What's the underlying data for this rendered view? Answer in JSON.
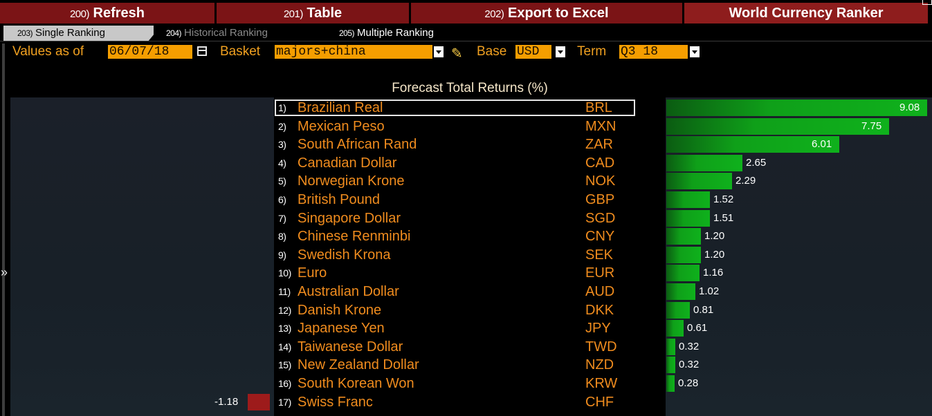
{
  "toolbar": {
    "refresh": {
      "num": "200)",
      "label": "Refresh"
    },
    "table": {
      "num": "201)",
      "label": "Table"
    },
    "export": {
      "num": "202)",
      "label": "Export to Excel"
    },
    "title": "World Currency Ranker"
  },
  "tabs": [
    {
      "num": "203)",
      "label": "Single Ranking"
    },
    {
      "num": "204)",
      "label": "Historical Ranking"
    },
    {
      "num": "205)",
      "label": "Multiple Ranking"
    }
  ],
  "controls": {
    "values_as_of_label": "Values as of",
    "date": "06/07/18",
    "basket_label": "Basket",
    "basket": "majors+china",
    "base_label": "Base",
    "base": "USD",
    "term_label": "Term",
    "term": "Q3 18"
  },
  "chart": {
    "title": "Forecast Total Returns (%)"
  },
  "colors": {
    "accent_orange": "#f59e00",
    "label_orange": "#f08c1e",
    "positive": "#0fb11c",
    "negative": "#9d1b1b",
    "toolbar_red": "#7b1416"
  },
  "chart_data": {
    "type": "bar",
    "title": "Forecast Total Returns (%)",
    "categories": [
      "Brazilian Real",
      "Mexican Peso",
      "South African Rand",
      "Canadian Dollar",
      "Norwegian Krone",
      "British Pound",
      "Singapore Dollar",
      "Chinese Renminbi",
      "Swedish Krona",
      "Euro",
      "Australian Dollar",
      "Danish Krone",
      "Japanese Yen",
      "Taiwanese Dollar",
      "New Zealand Dollar",
      "South Korean Won",
      "Swiss Franc"
    ],
    "rows": [
      {
        "rank": "1)",
        "name": "Brazilian Real",
        "code": "BRL",
        "value": 9.08,
        "label": "9.08"
      },
      {
        "rank": "2)",
        "name": "Mexican Peso",
        "code": "MXN",
        "value": 7.75,
        "label": "7.75"
      },
      {
        "rank": "3)",
        "name": "South African Rand",
        "code": "ZAR",
        "value": 6.01,
        "label": "6.01"
      },
      {
        "rank": "4)",
        "name": "Canadian Dollar",
        "code": "CAD",
        "value": 2.65,
        "label": "2.65"
      },
      {
        "rank": "5)",
        "name": "Norwegian Krone",
        "code": "NOK",
        "value": 2.29,
        "label": "2.29"
      },
      {
        "rank": "6)",
        "name": "British Pound",
        "code": "GBP",
        "value": 1.52,
        "label": "1.52"
      },
      {
        "rank": "7)",
        "name": "Singapore Dollar",
        "code": "SGD",
        "value": 1.51,
        "label": "1.51"
      },
      {
        "rank": "8)",
        "name": "Chinese Renminbi",
        "code": "CNY",
        "value": 1.2,
        "label": "1.20"
      },
      {
        "rank": "9)",
        "name": "Swedish Krona",
        "code": "SEK",
        "value": 1.2,
        "label": "1.20"
      },
      {
        "rank": "10)",
        "name": "Euro",
        "code": "EUR",
        "value": 1.16,
        "label": "1.16"
      },
      {
        "rank": "11)",
        "name": "Australian Dollar",
        "code": "AUD",
        "value": 1.02,
        "label": "1.02"
      },
      {
        "rank": "12)",
        "name": "Danish Krone",
        "code": "DKK",
        "value": 0.81,
        "label": "0.81"
      },
      {
        "rank": "13)",
        "name": "Japanese Yen",
        "code": "JPY",
        "value": 0.61,
        "label": "0.61"
      },
      {
        "rank": "14)",
        "name": "Taiwanese Dollar",
        "code": "TWD",
        "value": 0.32,
        "label": "0.32"
      },
      {
        "rank": "15)",
        "name": "New Zealand Dollar",
        "code": "NZD",
        "value": 0.32,
        "label": "0.32"
      },
      {
        "rank": "16)",
        "name": "South Korean Won",
        "code": "KRW",
        "value": 0.28,
        "label": "0.28"
      },
      {
        "rank": "17)",
        "name": "Swiss Franc",
        "code": "CHF",
        "value": -1.18,
        "label": "-1.18"
      }
    ],
    "selected_row": 0,
    "grid": false
  }
}
